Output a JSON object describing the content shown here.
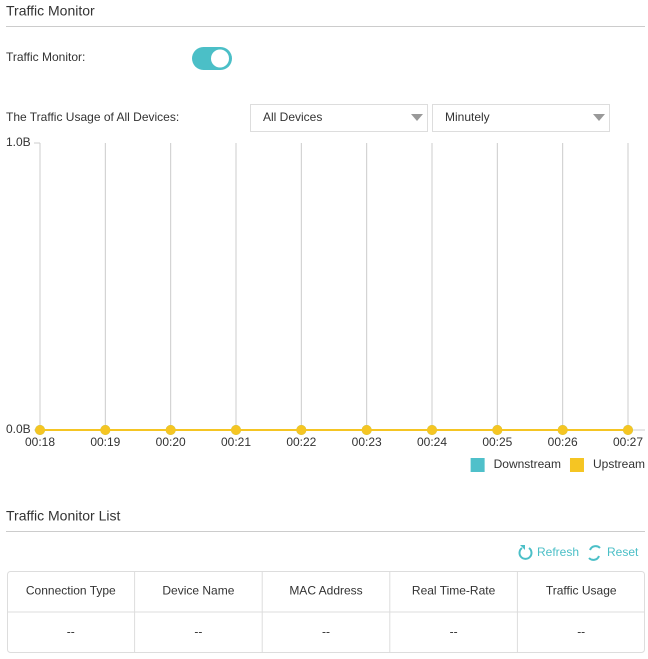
{
  "header": {
    "title": "Traffic Monitor"
  },
  "toggle": {
    "label": "Traffic Monitor:",
    "on": true
  },
  "usage": {
    "label": "The Traffic Usage of All Devices:",
    "device_select": "All Devices",
    "interval_select": "Minutely"
  },
  "chart_data": {
    "type": "line",
    "x": [
      "00:18",
      "00:19",
      "00:20",
      "00:21",
      "00:22",
      "00:23",
      "00:24",
      "00:25",
      "00:26",
      "00:27"
    ],
    "series": [
      {
        "name": "Downstream",
        "color": "#4fc0ca",
        "values": [
          0,
          0,
          0,
          0,
          0,
          0,
          0,
          0,
          0,
          0
        ]
      },
      {
        "name": "Upstream",
        "color": "#f5c523",
        "values": [
          0,
          0,
          0,
          0,
          0,
          0,
          0,
          0,
          0,
          0
        ]
      }
    ],
    "ylim": [
      0,
      1
    ],
    "yticks": [
      {
        "value": 0,
        "label": "0.0B"
      },
      {
        "value": 1,
        "label": "1.0B"
      }
    ],
    "grid": true,
    "legend": "bottom-right"
  },
  "list": {
    "title": "Traffic Monitor List",
    "actions": [
      "Refresh",
      "Reset"
    ],
    "table": {
      "columns": [
        "Connection Type",
        "Device Name",
        "MAC Address",
        "Real Time-Rate",
        "Traffic Usage"
      ],
      "rows": [
        [
          "--",
          "--",
          "--",
          "--",
          "--"
        ]
      ]
    }
  }
}
